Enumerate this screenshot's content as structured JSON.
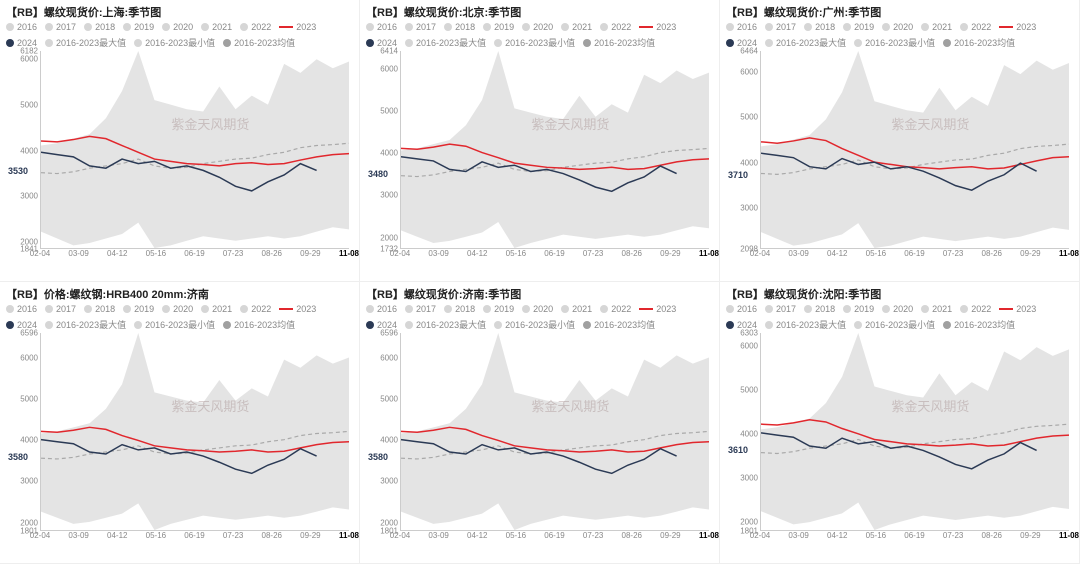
{
  "watermark": "紫金天风期货",
  "xlabels": [
    "02-04",
    "03-09",
    "04-12",
    "05-16",
    "06-19",
    "07-23",
    "08-26",
    "09-29",
    "11-08"
  ],
  "xlabel_highlight": "11-08",
  "legend_years": [
    "2016",
    "2017",
    "2018",
    "2019",
    "2020",
    "2021",
    "2022"
  ],
  "legend_year_color": "#d6d6d6",
  "legend_2023": {
    "label": "2023",
    "color": "#e1272d"
  },
  "legend_2024": {
    "label": "2024",
    "color": "#2b3a55"
  },
  "legend_max": {
    "label": "2016-2023最大值",
    "color": "#d6d6d6"
  },
  "legend_min": {
    "label": "2016-2023最小值",
    "color": "#d6d6d6"
  },
  "legend_mean": {
    "label": "2016-2023均值",
    "color": "#a0a0a0"
  },
  "series_style": {
    "band_fill": "#e4e4e4",
    "mean": {
      "color": "#a9a9a9",
      "width": 1.2,
      "dash": "4 3"
    },
    "s2023": {
      "color": "#e1272d",
      "width": 1.5,
      "dash": ""
    },
    "s2024": {
      "color": "#2b3a55",
      "width": 1.5,
      "dash": ""
    },
    "grid_color": "#eeeeee",
    "bg": "#ffffff",
    "title_fontsize": 11,
    "axis_fontsize": 8
  },
  "panels": [
    {
      "title": "【RB】螺纹现货价:上海:季节图",
      "ylim": [
        1841,
        6182
      ],
      "yticks": [
        1841,
        2000,
        3000,
        4000,
        5000,
        6000,
        6182
      ],
      "current": {
        "value": 3530,
        "color": "#2b3a55"
      },
      "band_top": [
        4100,
        4150,
        4250,
        4350,
        4700,
        5300,
        6182,
        5100,
        5000,
        4900,
        4850,
        5400,
        4900,
        5200,
        5000,
        5900,
        5700,
        6000,
        5800,
        5950
      ],
      "band_bot": [
        2200,
        2050,
        1900,
        1950,
        2050,
        2150,
        2400,
        1841,
        1900,
        2000,
        2100,
        2050,
        2000,
        2050,
        2100,
        2050,
        2100,
        2200,
        2300,
        2250
      ],
      "mean": [
        3500,
        3480,
        3520,
        3600,
        3650,
        3700,
        3800,
        3650,
        3600,
        3620,
        3700,
        3750,
        3800,
        3820,
        3900,
        3950,
        4050,
        4100,
        4120,
        4150
      ],
      "s2023": [
        4200,
        4180,
        4230,
        4300,
        4250,
        4100,
        3950,
        3800,
        3750,
        3700,
        3680,
        3650,
        3700,
        3720,
        3680,
        3700,
        3780,
        3850,
        3900,
        3920
      ],
      "s2024": [
        3950,
        3900,
        3850,
        3650,
        3600,
        3800,
        3700,
        3750,
        3600,
        3650,
        3550,
        3400,
        3200,
        3100,
        3300,
        3450,
        3700,
        3550,
        3600,
        3700
      ],
      "s2024_cut": 0.92
    },
    {
      "title": "【RB】螺纹现货价:北京:季节图",
      "ylim": [
        1732,
        6414
      ],
      "yticks": [
        1732,
        2000,
        3000,
        4000,
        5000,
        6000,
        6414
      ],
      "current": {
        "value": 3480,
        "color": "#2b3a55"
      },
      "band_top": [
        4050,
        4100,
        4200,
        4300,
        4650,
        5250,
        6414,
        5050,
        4950,
        4850,
        4800,
        5350,
        4850,
        5150,
        4950,
        5850,
        5650,
        5950,
        5750,
        5900
      ],
      "band_bot": [
        2150,
        2000,
        1850,
        1900,
        2000,
        2100,
        2350,
        1732,
        1850,
        1950,
        2050,
        2000,
        1950,
        2000,
        2050,
        2000,
        2050,
        2150,
        2250,
        2200
      ],
      "mean": [
        3450,
        3430,
        3470,
        3550,
        3600,
        3650,
        3750,
        3600,
        3550,
        3570,
        3650,
        3700,
        3750,
        3770,
        3850,
        3900,
        4000,
        4050,
        4070,
        4100
      ],
      "s2023": [
        4100,
        4080,
        4130,
        4200,
        4150,
        4000,
        3880,
        3750,
        3700,
        3650,
        3630,
        3600,
        3620,
        3650,
        3600,
        3620,
        3700,
        3780,
        3830,
        3850
      ],
      "s2024": [
        3900,
        3850,
        3800,
        3600,
        3550,
        3780,
        3650,
        3700,
        3550,
        3600,
        3500,
        3350,
        3180,
        3080,
        3280,
        3420,
        3680,
        3500,
        3550,
        3650
      ],
      "s2024_cut": 0.92
    },
    {
      "title": "【RB】螺纹现货价:广州:季节图",
      "ylim": [
        2098,
        6464
      ],
      "yticks": [
        2098,
        3000,
        4000,
        5000,
        6000,
        6464
      ],
      "current": {
        "value": 3710,
        "color": "#2b3a55"
      },
      "band_top": [
        4350,
        4400,
        4500,
        4600,
        4950,
        5550,
        6464,
        5350,
        5250,
        5150,
        5100,
        5650,
        5150,
        5450,
        5250,
        6150,
        5950,
        6250,
        6050,
        6200
      ],
      "band_bot": [
        2450,
        2300,
        2150,
        2200,
        2300,
        2400,
        2650,
        2098,
        2150,
        2250,
        2350,
        2300,
        2250,
        2300,
        2350,
        2300,
        2350,
        2450,
        2550,
        2500
      ],
      "mean": [
        3750,
        3730,
        3770,
        3850,
        3900,
        3950,
        4050,
        3900,
        3850,
        3870,
        3950,
        4000,
        4050,
        4070,
        4150,
        4200,
        4300,
        4350,
        4370,
        4400
      ],
      "s2023": [
        4450,
        4420,
        4470,
        4540,
        4480,
        4300,
        4150,
        4000,
        3950,
        3900,
        3880,
        3850,
        3880,
        3900,
        3850,
        3870,
        3950,
        4030,
        4100,
        4120
      ],
      "s2024": [
        4200,
        4150,
        4100,
        3900,
        3850,
        4080,
        3950,
        4000,
        3850,
        3900,
        3800,
        3650,
        3480,
        3380,
        3580,
        3720,
        3980,
        3800,
        3850,
        3950
      ],
      "s2024_cut": 0.92
    },
    {
      "title": "【RB】价格:螺纹钢:HRB400 20mm:济南",
      "ylim": [
        1801,
        6596
      ],
      "yticks": [
        1801,
        2000,
        3000,
        4000,
        5000,
        6000,
        6596
      ],
      "current": {
        "value": 3580,
        "color": "#2b3a55"
      },
      "band_top": [
        4150,
        4200,
        4300,
        4400,
        4750,
        5350,
        6596,
        5150,
        5050,
        4950,
        4900,
        5450,
        4950,
        5250,
        5050,
        5950,
        5750,
        6050,
        5850,
        6000
      ],
      "band_bot": [
        2250,
        2100,
        1950,
        2000,
        2100,
        2200,
        2450,
        1801,
        1950,
        2050,
        2150,
        2100,
        2050,
        2100,
        2150,
        2100,
        2150,
        2250,
        2350,
        2300
      ],
      "mean": [
        3550,
        3530,
        3570,
        3650,
        3700,
        3750,
        3850,
        3700,
        3650,
        3670,
        3750,
        3800,
        3850,
        3870,
        3950,
        4000,
        4100,
        4150,
        4170,
        4200
      ],
      "s2023": [
        4200,
        4180,
        4230,
        4300,
        4250,
        4100,
        3980,
        3850,
        3800,
        3750,
        3730,
        3700,
        3720,
        3750,
        3700,
        3720,
        3800,
        3880,
        3930,
        3950
      ],
      "s2024": [
        4000,
        3950,
        3900,
        3700,
        3650,
        3880,
        3750,
        3800,
        3650,
        3700,
        3600,
        3450,
        3280,
        3180,
        3380,
        3520,
        3780,
        3600,
        3650,
        3750
      ],
      "s2024_cut": 0.92
    },
    {
      "title": "【RB】螺纹现货价:济南:季节图",
      "ylim": [
        1801,
        6596
      ],
      "yticks": [
        1801,
        2000,
        3000,
        4000,
        5000,
        6000,
        6596
      ],
      "current": {
        "value": 3580,
        "color": "#2b3a55"
      },
      "band_top": [
        4150,
        4200,
        4300,
        4400,
        4750,
        5350,
        6596,
        5150,
        5050,
        4950,
        4900,
        5450,
        4950,
        5250,
        5050,
        5950,
        5750,
        6050,
        5850,
        6000
      ],
      "band_bot": [
        2250,
        2100,
        1950,
        2000,
        2100,
        2200,
        2450,
        1801,
        1950,
        2050,
        2150,
        2100,
        2050,
        2100,
        2150,
        2100,
        2150,
        2250,
        2350,
        2300
      ],
      "mean": [
        3550,
        3530,
        3570,
        3650,
        3700,
        3750,
        3850,
        3700,
        3650,
        3670,
        3750,
        3800,
        3850,
        3870,
        3950,
        4000,
        4100,
        4150,
        4170,
        4200
      ],
      "s2023": [
        4200,
        4180,
        4230,
        4300,
        4250,
        4100,
        3980,
        3850,
        3800,
        3750,
        3730,
        3700,
        3720,
        3750,
        3700,
        3720,
        3800,
        3880,
        3930,
        3950
      ],
      "s2024": [
        4000,
        3950,
        3900,
        3700,
        3650,
        3880,
        3750,
        3800,
        3650,
        3700,
        3600,
        3450,
        3280,
        3180,
        3380,
        3520,
        3780,
        3600,
        3650,
        3750
      ],
      "s2024_cut": 0.92
    },
    {
      "title": "【RB】螺纹现货价:沈阳:季节图",
      "ylim": [
        1801,
        6303
      ],
      "yticks": [
        1801,
        2000,
        3000,
        4000,
        5000,
        6000,
        6303
      ],
      "current": {
        "value": 3610,
        "color": "#2b3a55"
      },
      "band_top": [
        4100,
        4150,
        4250,
        4350,
        4700,
        5300,
        6303,
        5080,
        4980,
        4880,
        4830,
        5380,
        4880,
        5180,
        4980,
        5880,
        5680,
        5980,
        5780,
        5930
      ],
      "band_bot": [
        2230,
        2080,
        1930,
        1980,
        2080,
        2180,
        2430,
        1801,
        1930,
        2030,
        2130,
        2080,
        2030,
        2080,
        2130,
        2080,
        2130,
        2230,
        2330,
        2280
      ],
      "mean": [
        3570,
        3550,
        3590,
        3670,
        3720,
        3770,
        3870,
        3720,
        3670,
        3690,
        3770,
        3820,
        3870,
        3890,
        3970,
        4020,
        4120,
        4170,
        4190,
        4220
      ],
      "s2023": [
        4220,
        4200,
        4250,
        4320,
        4270,
        4120,
        4000,
        3870,
        3820,
        3770,
        3750,
        3720,
        3740,
        3770,
        3720,
        3740,
        3820,
        3900,
        3950,
        3970
      ],
      "s2024": [
        4020,
        3970,
        3920,
        3720,
        3670,
        3900,
        3770,
        3820,
        3670,
        3720,
        3620,
        3470,
        3300,
        3200,
        3400,
        3540,
        3800,
        3620,
        3670,
        3770
      ],
      "s2024_cut": 0.92
    }
  ]
}
